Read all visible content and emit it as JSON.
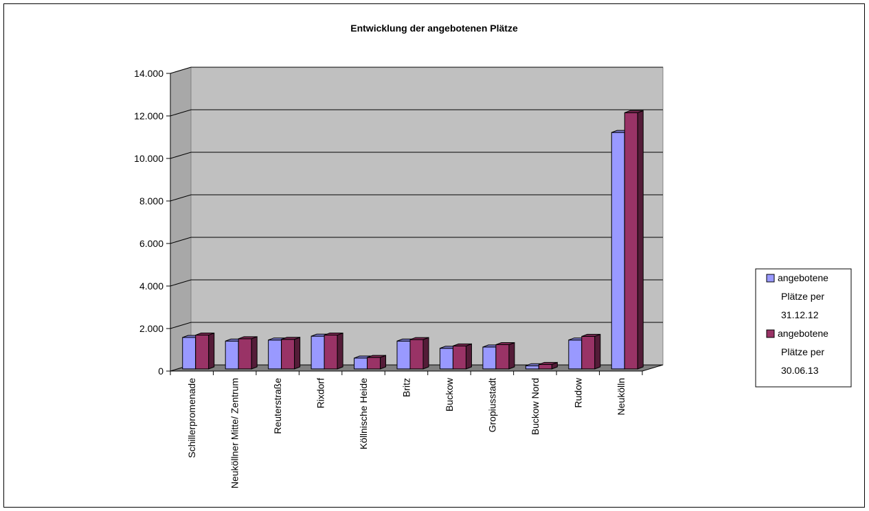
{
  "chart_data": {
    "type": "bar",
    "title": "Entwicklung der angebotenen Plätze",
    "categories": [
      "Schillerpromenade",
      "Neuköllner Mitte/ Zentrum",
      "Reuterstraße",
      "Rixdorf",
      "Köllnische Heide",
      "Britz",
      "Buckow",
      "Gropiusstadt",
      "Buckow Nord",
      "Rudow",
      "Neukölln"
    ],
    "series": [
      {
        "name": "angebotene Plätze per 31.12.12",
        "color": "#9999ff",
        "values": [
          1480,
          1310,
          1360,
          1540,
          510,
          1310,
          970,
          1030,
          150,
          1360,
          11120
        ]
      },
      {
        "name": "angebotene Plätze per 30.06.13",
        "color": "#993366",
        "values": [
          1590,
          1420,
          1390,
          1590,
          540,
          1380,
          1080,
          1140,
          210,
          1530,
          12050
        ]
      }
    ],
    "ylim": [
      0,
      14000
    ],
    "yticks": [
      0,
      2000,
      4000,
      6000,
      8000,
      10000,
      12000,
      14000
    ],
    "ytick_labels": [
      "0",
      "2.000",
      "4.000",
      "6.000",
      "8.000",
      "10.000",
      "12.000",
      "14.000"
    ],
    "grid": true,
    "legend": {
      "position": "right",
      "entries": [
        {
          "lines": [
            "angebotene",
            "Plätze per",
            "31.12.12"
          ]
        },
        {
          "lines": [
            "angebotene",
            "Plätze per",
            "30.06.13"
          ]
        }
      ]
    }
  }
}
